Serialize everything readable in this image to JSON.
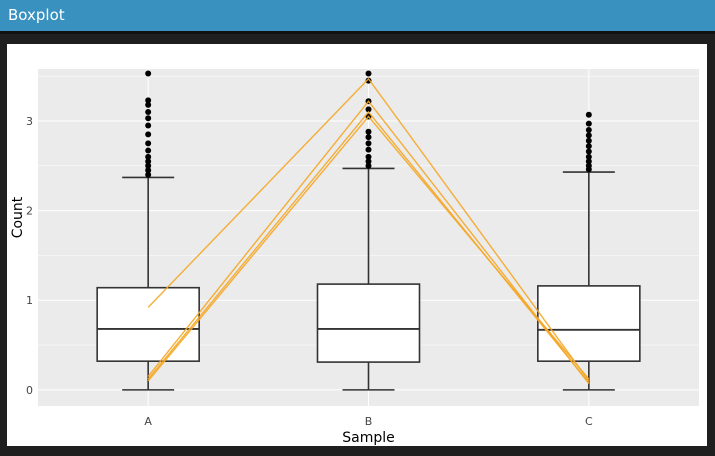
{
  "app": {
    "title": "Boxplot"
  },
  "colors": {
    "title_bar": "#3891bf",
    "panel_bg": "#ebebeb",
    "grid": "#ffffff",
    "box_stroke": "#333333",
    "box_fill": "#ffffff",
    "outlier": "#000000",
    "trace": "#f5a623"
  },
  "chart_data": {
    "type": "box",
    "xlabel": "Sample",
    "ylabel": "Count",
    "categories": [
      "A",
      "B",
      "C"
    ],
    "yticks": [
      0,
      1,
      2,
      3
    ],
    "ylim": [
      -0.18,
      3.58
    ],
    "grid": true,
    "boxes": [
      {
        "category": "A",
        "min": 0.0,
        "q1": 0.32,
        "median": 0.68,
        "q3": 1.14,
        "max": 2.37,
        "outliers": [
          2.4,
          2.45,
          2.5,
          2.55,
          2.6,
          2.67,
          2.75,
          2.85,
          2.95,
          3.03,
          3.1,
          3.18,
          3.23,
          3.53
        ]
      },
      {
        "category": "B",
        "min": 0.0,
        "q1": 0.31,
        "median": 0.68,
        "q3": 1.18,
        "max": 2.47,
        "outliers": [
          2.5,
          2.55,
          2.6,
          2.68,
          2.75,
          2.82,
          2.88,
          3.05,
          3.13,
          3.22,
          3.45,
          3.53
        ]
      },
      {
        "category": "C",
        "min": 0.0,
        "q1": 0.32,
        "median": 0.67,
        "q3": 1.16,
        "max": 2.43,
        "outliers": [
          2.46,
          2.5,
          2.55,
          2.6,
          2.66,
          2.72,
          2.78,
          2.84,
          2.9,
          2.97,
          3.07
        ]
      }
    ],
    "traces": [
      {
        "values": [
          0.92,
          3.47,
          0.1
        ]
      },
      {
        "values": [
          0.15,
          3.22,
          0.07
        ]
      },
      {
        "values": [
          0.12,
          3.1,
          0.08
        ]
      },
      {
        "values": [
          0.1,
          3.05,
          0.12
        ]
      }
    ]
  }
}
